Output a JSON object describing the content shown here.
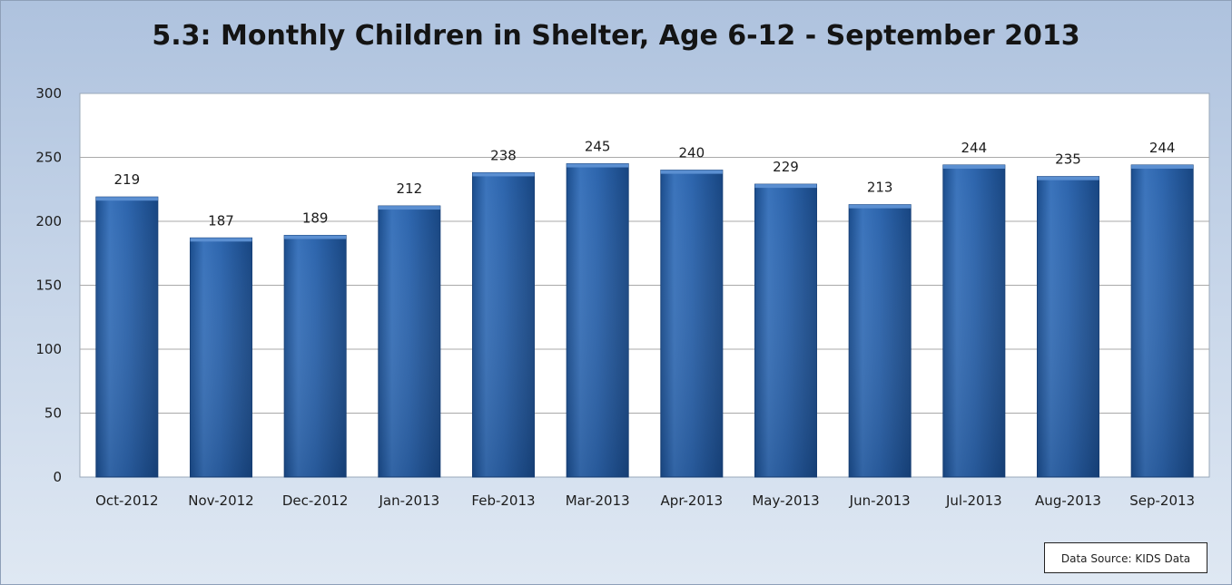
{
  "chart_data": {
    "type": "bar",
    "title": "5.3: Monthly Children in Shelter, Age 6-12 - September 2013",
    "xlabel": "",
    "ylabel": "",
    "categories": [
      "Oct-2012",
      "Nov-2012",
      "Dec-2012",
      "Jan-2013",
      "Feb-2013",
      "Mar-2013",
      "Apr-2013",
      "May-2013",
      "Jun-2013",
      "Jul-2013",
      "Aug-2013",
      "Sep-2013"
    ],
    "values": [
      219,
      187,
      189,
      212,
      238,
      245,
      240,
      229,
      213,
      244,
      235,
      244
    ],
    "ylim": [
      0,
      300
    ],
    "yticks": [
      0,
      50,
      100,
      150,
      200,
      250,
      300
    ],
    "grid": true,
    "legend": "none",
    "bar_color": "#2a62a8",
    "annotation": "Data Source: KIDS Data"
  }
}
